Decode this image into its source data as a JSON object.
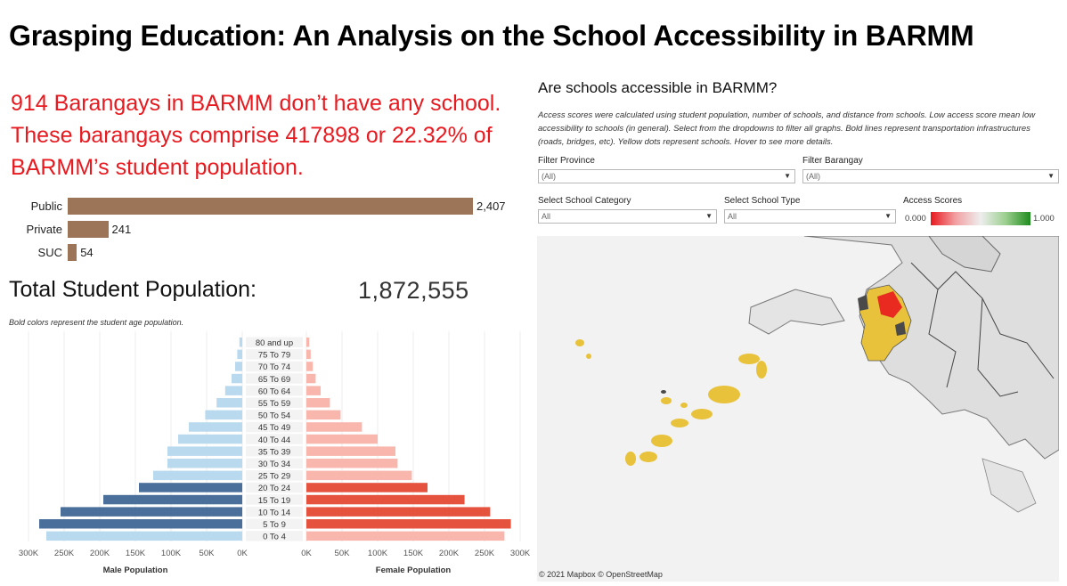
{
  "title": "Grasping Education: An Analysis on the School Accessibility in BARMM",
  "headline": "914 Barangays in BARMM don’t have any school. These barangays comprise 417898 or 22.32% of BARMM’s student population.",
  "school_category_chart": {
    "categories": [
      "Public",
      "Private",
      "SUC"
    ],
    "values": [
      2407,
      241,
      54
    ],
    "value_labels": [
      "2,407",
      "241",
      "54"
    ],
    "bar_color": "#9c7457"
  },
  "population": {
    "label": "Total Student Population:",
    "value": "1,872,555",
    "note": "Bold colors represent the student age population."
  },
  "map_panel": {
    "title": "Are schools accessible in BARMM?",
    "description": "Access scores were calculated using student population, number of schools, and distance from schools. Low access score mean low accessibility to schools (in general). Select from the dropdowns to filter all graphs. Bold lines represent transportation infrastructures (roads, bridges, etc). Yellow dots represent schools.  Hover to see more details.",
    "filters": {
      "province": {
        "label": "Filter Province",
        "value": "(All)"
      },
      "barangay": {
        "label": "Filter Barangay",
        "value": "(All)"
      },
      "school_category": {
        "label": "Select School Category",
        "value": "All"
      },
      "school_type": {
        "label": "Select School Type",
        "value": "All"
      }
    },
    "access_scores": {
      "label": "Access Scores",
      "min": "0.000",
      "max": "1.000",
      "low_color": "#e8191f",
      "high_color": "#1e8c1e"
    },
    "attribution": "© 2021 Mapbox  © OpenStreetMap",
    "school_dot_color": "#e8c23a"
  },
  "chart_data": {
    "type": "bar",
    "orientation": "horizontal-pyramid",
    "categories": [
      "80 and up",
      "75 To 79",
      "70 To 74",
      "65 To 69",
      "60 To 64",
      "55 To 59",
      "50 To 54",
      "45 To 49",
      "40 To 44",
      "35 To 39",
      "30 To 34",
      "25 To 29",
      "20 To 24",
      "15 To 19",
      "10 To 14",
      "5 To 9",
      "0 To 4"
    ],
    "bold_categories": [
      "20 To 24",
      "15 To 19",
      "10 To 14",
      "5 To 9"
    ],
    "series": [
      {
        "name": "Male Population",
        "values": [
          4000,
          7000,
          10000,
          15000,
          24000,
          36000,
          52000,
          75000,
          90000,
          105000,
          105000,
          125000,
          145000,
          195000,
          255000,
          285000,
          275000
        ],
        "light_color": "#b9d9ee",
        "bold_color": "#4a6f9b"
      },
      {
        "name": "Female Population",
        "values": [
          4000,
          6000,
          9000,
          13000,
          20000,
          33000,
          48000,
          78000,
          100000,
          125000,
          128000,
          148000,
          170000,
          222000,
          258000,
          287000,
          278000
        ],
        "light_color": "#f8b6ad",
        "bold_color": "#e5533f"
      }
    ],
    "male_ticks": [
      "300K",
      "250K",
      "200K",
      "150K",
      "100K",
      "50K",
      "0K"
    ],
    "female_ticks": [
      "0K",
      "50K",
      "100K",
      "150K",
      "200K",
      "250K",
      "300K"
    ],
    "xlabel_male": "Male Population",
    "xlabel_female": "Female Population",
    "xlim": [
      0,
      300000
    ]
  }
}
